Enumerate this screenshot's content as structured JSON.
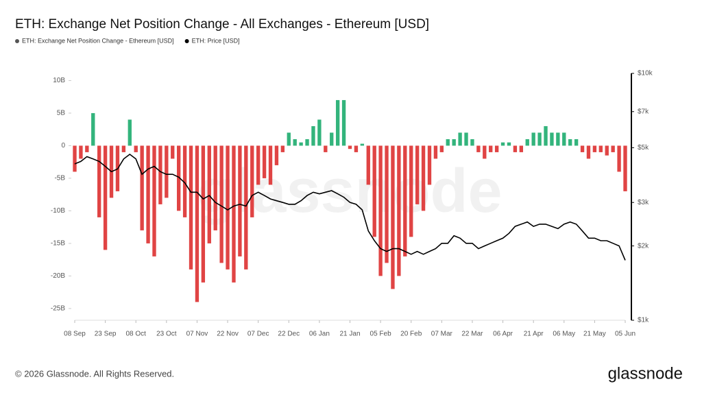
{
  "chart_data": {
    "type": "bar",
    "title": "ETH: Exchange Net Position Change - All Exchanges - Ethereum [USD]",
    "watermark": "glassnode",
    "footer": "© 2026 Glassnode. All Rights Reserved.",
    "logo": "glassnode",
    "categories": [
      "08 Sep",
      null,
      null,
      null,
      null,
      "23 Sep",
      null,
      null,
      null,
      null,
      "08 Oct",
      null,
      null,
      null,
      null,
      "23 Oct",
      null,
      null,
      null,
      null,
      "07 Nov",
      null,
      null,
      null,
      null,
      "22 Nov",
      null,
      null,
      null,
      null,
      "07 Dec",
      null,
      null,
      null,
      null,
      "22 Dec",
      null,
      null,
      null,
      null,
      "06 Jan",
      null,
      null,
      null,
      null,
      "21 Jan",
      null,
      null,
      null,
      null,
      "05 Feb",
      null,
      null,
      null,
      null,
      "20 Feb",
      null,
      null,
      null,
      null,
      "07 Mar",
      null,
      null,
      null,
      null,
      "22 Mar",
      null,
      null,
      null,
      null,
      "06 Apr",
      null,
      null,
      null,
      null,
      "21 Apr",
      null,
      null,
      null,
      null,
      "06 May",
      null,
      null,
      null,
      null,
      "21 May",
      null,
      null,
      null,
      null,
      "05 Jun"
    ],
    "series": [
      {
        "name": "ETH: Exchange Net Position Change - Ethereum [USD]",
        "type": "bar",
        "axis": "y",
        "color": "#555555",
        "positive_color": "#33b47c",
        "negative_color": "#e04444",
        "values": [
          -4,
          -2,
          -1,
          5,
          -11,
          -16,
          -8,
          -7,
          -1,
          4,
          -1,
          -13,
          -15,
          -17,
          -9,
          -8,
          -2,
          -10,
          -11,
          -19,
          -24,
          -21,
          -15,
          -13,
          -18,
          -19,
          -21,
          -17,
          -19,
          -11,
          -6,
          -5,
          -6,
          -3,
          -1,
          2,
          1,
          0.5,
          1,
          3,
          4,
          -1,
          2,
          7,
          7,
          -0.5,
          -1,
          0.3,
          -6,
          -14,
          -20,
          -18,
          -22,
          -20,
          -17,
          -14,
          -9,
          -10,
          -6,
          -2,
          -1,
          1,
          1,
          2,
          2,
          1,
          -1,
          -2,
          -1,
          -1,
          0.5,
          0.5,
          -1,
          -1,
          1,
          2,
          2,
          3,
          2,
          2,
          2,
          1,
          1,
          -1,
          -2,
          -1,
          -1,
          -1.5,
          -1,
          -4,
          -7
        ]
      },
      {
        "name": "ETH: Price [USD]",
        "type": "line",
        "axis": "y2",
        "color": "#000000",
        "values": [
          4300,
          4400,
          4600,
          4500,
          4400,
          4200,
          4000,
          4100,
          4500,
          4700,
          4500,
          3900,
          4100,
          4200,
          4000,
          3900,
          3900,
          3800,
          3600,
          3300,
          3300,
          3100,
          3200,
          3000,
          2900,
          2800,
          2900,
          2950,
          2900,
          3200,
          3300,
          3200,
          3100,
          3050,
          3000,
          2950,
          2950,
          3050,
          3200,
          3300,
          3250,
          3300,
          3350,
          3250,
          3150,
          3000,
          2950,
          2800,
          2300,
          2100,
          1950,
          1900,
          1950,
          1950,
          1900,
          1850,
          1900,
          1850,
          1900,
          1950,
          2050,
          2050,
          2200,
          2150,
          2050,
          2050,
          1950,
          2000,
          2050,
          2100,
          2150,
          2250,
          2400,
          2450,
          2500,
          2400,
          2450,
          2450,
          2400,
          2350,
          2450,
          2500,
          2450,
          2300,
          2150,
          2150,
          2100,
          2100,
          2050,
          2000,
          1750
        ]
      }
    ],
    "ylim": [
      -26.8,
      11.1
    ],
    "yticks": [
      {
        "value": 10,
        "label": "10B"
      },
      {
        "value": 5,
        "label": "5B"
      },
      0,
      {
        "value": -5,
        "label": "-5B"
      },
      {
        "value": -10,
        "label": "-10B"
      },
      {
        "value": -15,
        "label": "-15B"
      },
      {
        "value": -20,
        "label": "-20B"
      },
      {
        "value": -25,
        "label": "-25B"
      }
    ],
    "y2lim": [
      1000,
      10000
    ],
    "y2log": true,
    "y2ticks": [
      {
        "value": 1000,
        "label": "$1k"
      },
      {
        "value": 2000,
        "label": "$2k"
      },
      {
        "value": 3000,
        "label": "$3k"
      },
      {
        "value": 5000,
        "label": "$5k"
      },
      {
        "value": 7000,
        "label": "$7k"
      },
      {
        "value": 10000,
        "label": "$10k"
      }
    ],
    "grid": false
  }
}
